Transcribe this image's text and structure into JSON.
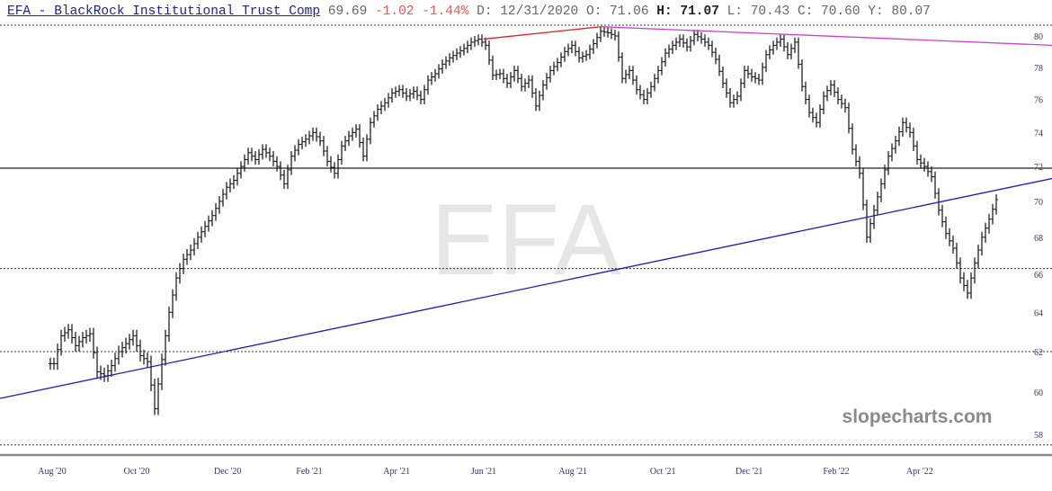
{
  "header": {
    "title": "EFA - BlackRock Institutional Trust Comp",
    "last": "69.69",
    "change": "-1.02",
    "change_pct": "-1.44%",
    "date_label": "D: 12/31/2020",
    "open_label": "O: 71.06",
    "high_label": "H: 71.07",
    "low_label": "L: 70.43",
    "close_label": "C: 70.60",
    "y_label": "Y: 80.07"
  },
  "watermark": "EFA",
  "brand": "slopecharts.com",
  "colors": {
    "bars": "#111111",
    "trend_blue": "#1a1acc",
    "trend_red": "#e02020",
    "trend_magenta": "#d040d0",
    "level": "#222222"
  },
  "chart_data": {
    "type": "ohlc",
    "title": "EFA - BlackRock Institutional Trust Comp",
    "y_scale": "log",
    "ylim": [
      57.5,
      80.7
    ],
    "y_ticks": [
      58,
      60,
      62,
      64,
      66,
      68,
      70,
      72,
      74,
      76,
      78,
      80
    ],
    "x_ticks": [
      {
        "label": "Aug '20",
        "index": 0
      },
      {
        "label": "Oct '20",
        "index": 11.75
      },
      {
        "label": "Dec '20",
        "index": 24.4
      },
      {
        "label": "Feb '21",
        "index": 35.75
      },
      {
        "label": "Apr '21",
        "index": 47.9
      },
      {
        "label": "Jun '21",
        "index": 60
      },
      {
        "label": "Aug '21",
        "index": 72.4
      },
      {
        "label": "Oct '21",
        "index": 84.9
      },
      {
        "label": "Dec '21",
        "index": 96.9
      },
      {
        "label": "Feb '22",
        "index": 109
      },
      {
        "label": "Apr '22",
        "index": 120.6
      }
    ],
    "closes": [
      61.4,
      62.8,
      63.1,
      62.3,
      62.7,
      62.9,
      61.0,
      60.8,
      61.3,
      62.0,
      62.4,
      62.8,
      61.8,
      61.5,
      59.2,
      61.6,
      64.0,
      65.8,
      66.8,
      67.3,
      68.0,
      68.6,
      69.2,
      70.0,
      70.8,
      71.2,
      72.0,
      72.8,
      72.4,
      73.0,
      72.6,
      72.0,
      71.0,
      72.6,
      73.3,
      73.6,
      74.0,
      73.5,
      72.3,
      71.6,
      73.2,
      73.8,
      74.2,
      72.6,
      74.6,
      75.4,
      75.8,
      76.4,
      76.6,
      76.2,
      76.5,
      76.0,
      77.2,
      77.6,
      78.2,
      78.6,
      78.9,
      79.2,
      79.6,
      79.8,
      79.4,
      77.5,
      77.6,
      77.0,
      77.8,
      76.8,
      77.2,
      75.6,
      76.9,
      77.8,
      78.3,
      79.0,
      79.4,
      78.6,
      78.8,
      79.5,
      80.3,
      80.2,
      80.0,
      77.3,
      77.8,
      76.6,
      76.0,
      76.8,
      77.8,
      78.9,
      79.4,
      79.8,
      79.3,
      80.1,
      79.8,
      79.4,
      78.5,
      77.0,
      75.8,
      76.2,
      77.8,
      77.4,
      77.2,
      78.8,
      79.4,
      79.8,
      78.8,
      79.6,
      76.8,
      75.2,
      74.6,
      76.2,
      76.9,
      76.0,
      75.5,
      73.0,
      71.6,
      68.0,
      69.5,
      71.0,
      72.6,
      73.5,
      74.6,
      74.0,
      72.4,
      72.0,
      71.4,
      69.5,
      68.2,
      67.4,
      65.8,
      65.0,
      66.6,
      68.0,
      69.0,
      70.1
    ],
    "horizontal_levels": [
      {
        "price": 71.9,
        "style": "solid"
      },
      {
        "price": 66.3,
        "style": "dotted"
      },
      {
        "price": 62.0,
        "style": "dotted"
      },
      {
        "price": 80.7,
        "style": "dotted"
      },
      {
        "price": 57.5,
        "style": "dotted"
      }
    ],
    "trendlines": [
      {
        "name": "blue-support",
        "color": "#1a1acc",
        "from": [
          -7.25,
          59.7
        ],
        "to": [
          139,
          71.3
        ]
      },
      {
        "name": "red-rising-top",
        "color": "#e02020",
        "from": [
          60,
          79.8
        ],
        "to": [
          76.25,
          80.6
        ]
      },
      {
        "name": "magenta-falling-top",
        "color": "#d040d0",
        "from": [
          76.25,
          80.6
        ],
        "to": [
          139,
          79.4
        ]
      }
    ]
  }
}
